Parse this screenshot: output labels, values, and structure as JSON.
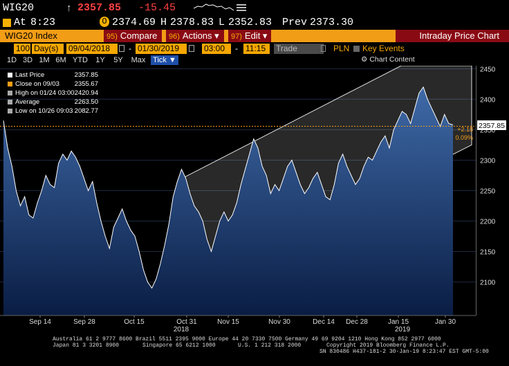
{
  "quote": {
    "ticker": "WIG20",
    "arrow": "↑",
    "last": "2357.85",
    "change": "-15.45",
    "at_label": "At",
    "time": "8:23",
    "open_label": "O",
    "open": "2374.69",
    "high_label": "H",
    "high": "2378.83",
    "low_label": "L",
    "low": "2352.83",
    "prev_label": "Prev",
    "prev": "2373.30"
  },
  "toolbar": {
    "ticker": "WIG20 Index",
    "compare_num": "95)",
    "compare": "Compare",
    "actions_num": "96)",
    "actions": "Actions ▾",
    "edit_num": "97)",
    "edit": "Edit ▾",
    "title": "Intraday Price Chart"
  },
  "datebar": {
    "period_value": "100",
    "period_unit": "Day(s)",
    "start_date": "09/04/2018",
    "dash": "-",
    "end_date": "01/30/2019",
    "start_time": "03:00",
    "time_dash": "-",
    "end_time": "11:15",
    "market": "Trade",
    "currency": "PLN",
    "key_events": "Key Events"
  },
  "ranges": [
    "1D",
    "3D",
    "1M",
    "6M",
    "YTD",
    "1Y",
    "5Y",
    "Max",
    "Tick ▼"
  ],
  "chart_content_label": "Chart Content",
  "legend": [
    {
      "label": "Last Price",
      "value": "2357.85",
      "color": "#ffffff"
    },
    {
      "label": "Close on 09/03",
      "value": "2355.67",
      "color": "#f29d16"
    },
    {
      "label": "High on 01/24 03:00",
      "value": "2420.94",
      "color": "#aaaaaa"
    },
    {
      "label": "Average",
      "value": "2263.50",
      "color": "#aaaaaa"
    },
    {
      "label": "Low on 10/26 09:03",
      "value": "2082.77",
      "color": "#aaaaaa"
    }
  ],
  "last_label": "2357.85",
  "change_label": "+2.18",
  "change_pct_label": "0.09%",
  "chart_data": {
    "type": "line",
    "ylim": [
      2045,
      2455
    ],
    "yticks": [
      2100,
      2150,
      2200,
      2250,
      2300,
      2350,
      2400,
      2450
    ],
    "xticks": [
      "Sep 14",
      "Sep 28",
      "Oct 15",
      "Oct 31",
      "Nov 15",
      "Nov 30",
      "Dec 14",
      "Dec 28",
      "Jan 15",
      "Jan 30"
    ],
    "year_labels": [
      "2018",
      "2019"
    ],
    "close_ref": 2355.67,
    "series": [
      {
        "values": [
          2365,
          2320,
          2290,
          2250,
          2225,
          2240,
          2210,
          2205,
          2230,
          2250,
          2275,
          2260,
          2255,
          2295,
          2310,
          2300,
          2315,
          2305,
          2290,
          2270,
          2250,
          2265,
          2230,
          2200,
          2175,
          2155,
          2190,
          2205,
          2220,
          2200,
          2185,
          2175,
          2150,
          2120,
          2100,
          2090,
          2105,
          2130,
          2160,
          2195,
          2240,
          2265,
          2285,
          2270,
          2245,
          2225,
          2215,
          2200,
          2170,
          2150,
          2175,
          2200,
          2215,
          2200,
          2210,
          2230,
          2260,
          2285,
          2310,
          2335,
          2320,
          2290,
          2275,
          2245,
          2260,
          2250,
          2270,
          2290,
          2300,
          2280,
          2260,
          2245,
          2255,
          2270,
          2280,
          2260,
          2240,
          2235,
          2260,
          2295,
          2310,
          2290,
          2275,
          2260,
          2270,
          2290,
          2305,
          2300,
          2315,
          2330,
          2340,
          2320,
          2350,
          2365,
          2380,
          2375,
          2360,
          2385,
          2410,
          2420,
          2400,
          2385,
          2370,
          2355,
          2375,
          2360,
          2357.85
        ]
      }
    ],
    "channel": {
      "upper": [
        2267,
        2455
      ],
      "lower": [
        2082,
        2325
      ]
    }
  },
  "footer": {
    "line1": "Australia 61 2 9777 8600 Brazil 5511 2395 9000 Europe 44 20 7330 7500 Germany 49 69 9204 1210 Hong Kong 852 2977 6000",
    "line2a": "Japan 81 3 3201 8900",
    "line2b": "Singapore 65 6212 1000",
    "line2c": "U.S. 1 212 318 2000",
    "line2d": "Copyright 2019 Bloomberg Finance L.P.",
    "line3": "SN 830486 H437-181-2 30-Jan-19 8:23:47 EST GMT-5:00"
  }
}
